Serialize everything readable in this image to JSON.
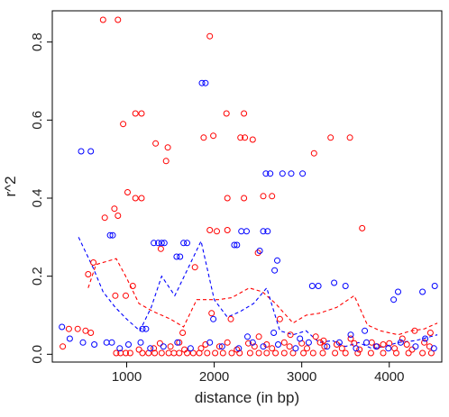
{
  "chart_data": {
    "type": "scatter",
    "title": "",
    "xlabel": "distance (in bp)",
    "ylabel": "r^2",
    "xlim": [
      150,
      4600
    ],
    "ylim": [
      -0.02,
      0.88
    ],
    "x_ticks": [
      1000,
      2000,
      3000,
      4000
    ],
    "x_tick_labels": [
      "1000",
      "2000",
      "3000",
      "4000"
    ],
    "y_ticks": [
      0.0,
      0.2,
      0.4,
      0.6,
      0.8
    ],
    "y_tick_labels": [
      "0.0",
      "0.2",
      "0.4",
      "0.6",
      "0.8"
    ],
    "grid": false,
    "legend": "none",
    "series": [
      {
        "color": "#ff0000",
        "marker": "open-circle",
        "points": [
          [
            730,
            0.857
          ],
          [
            900,
            0.857
          ],
          [
            960,
            0.59
          ],
          [
            1100,
            0.617
          ],
          [
            1170,
            0.617
          ],
          [
            1010,
            0.415
          ],
          [
            1100,
            0.4
          ],
          [
            1170,
            0.4
          ],
          [
            860,
            0.373
          ],
          [
            900,
            0.355
          ],
          [
            750,
            0.35
          ],
          [
            1330,
            0.54
          ],
          [
            1470,
            0.53
          ],
          [
            1450,
            0.495
          ],
          [
            1880,
            0.555
          ],
          [
            1950,
            0.815
          ],
          [
            1990,
            0.56
          ],
          [
            2140,
            0.617
          ],
          [
            2300,
            0.555
          ],
          [
            2340,
            0.617
          ],
          [
            2350,
            0.555
          ],
          [
            2440,
            0.55
          ],
          [
            2150,
            0.4
          ],
          [
            2340,
            0.4
          ],
          [
            2560,
            0.405
          ],
          [
            2660,
            0.405
          ],
          [
            3140,
            0.515
          ],
          [
            3330,
            0.555
          ],
          [
            3550,
            0.555
          ],
          [
            3690,
            0.323
          ],
          [
            1950,
            0.318
          ],
          [
            2030,
            0.315
          ],
          [
            2150,
            0.318
          ],
          [
            1390,
            0.27
          ],
          [
            1780,
            0.223
          ],
          [
            1970,
            0.105
          ],
          [
            2500,
            0.26
          ],
          [
            620,
            0.235
          ],
          [
            560,
            0.205
          ],
          [
            870,
            0.15
          ],
          [
            990,
            0.15
          ],
          [
            1070,
            0.175
          ],
          [
            1640,
            0.055
          ],
          [
            2190,
            0.09
          ],
          [
            2750,
            0.09
          ],
          [
            270,
            0.02
          ],
          [
            340,
            0.065
          ],
          [
            440,
            0.065
          ],
          [
            530,
            0.06
          ],
          [
            590,
            0.055
          ],
          [
            880,
            0.003
          ],
          [
            930,
            0.003
          ],
          [
            990,
            0.003
          ],
          [
            1040,
            0.003
          ],
          [
            1180,
            0.003
          ],
          [
            1250,
            0.003
          ],
          [
            1320,
            0.003
          ],
          [
            1400,
            0.003
          ],
          [
            1480,
            0.003
          ],
          [
            1540,
            0.003
          ],
          [
            1600,
            0.003
          ],
          [
            1690,
            0.003
          ],
          [
            1760,
            0.003
          ],
          [
            1830,
            0.003
          ],
          [
            1920,
            0.003
          ],
          [
            2010,
            0.003
          ],
          [
            2100,
            0.003
          ],
          [
            2200,
            0.003
          ],
          [
            2290,
            0.003
          ],
          [
            2410,
            0.003
          ],
          [
            2510,
            0.003
          ],
          [
            2600,
            0.003
          ],
          [
            2700,
            0.003
          ],
          [
            2800,
            0.003
          ],
          [
            2900,
            0.003
          ],
          [
            3020,
            0.003
          ],
          [
            3130,
            0.003
          ],
          [
            3240,
            0.003
          ],
          [
            3380,
            0.003
          ],
          [
            3500,
            0.003
          ],
          [
            3640,
            0.003
          ],
          [
            3790,
            0.003
          ],
          [
            3930,
            0.003
          ],
          [
            4080,
            0.003
          ],
          [
            4220,
            0.003
          ],
          [
            4380,
            0.003
          ],
          [
            4480,
            0.003
          ],
          [
            1140,
            0.012
          ],
          [
            1310,
            0.015
          ],
          [
            1500,
            0.02
          ],
          [
            1660,
            0.012
          ],
          [
            1850,
            0.015
          ],
          [
            2060,
            0.02
          ],
          [
            2260,
            0.012
          ],
          [
            2460,
            0.02
          ],
          [
            2660,
            0.015
          ],
          [
            2860,
            0.02
          ],
          [
            3060,
            0.015
          ],
          [
            3260,
            0.02
          ],
          [
            3460,
            0.015
          ],
          [
            3660,
            0.012
          ],
          [
            3860,
            0.02
          ],
          [
            4060,
            0.015
          ],
          [
            4260,
            0.012
          ],
          [
            4460,
            0.02
          ],
          [
            1380,
            0.028
          ],
          [
            1600,
            0.03
          ],
          [
            1900,
            0.025
          ],
          [
            2150,
            0.03
          ],
          [
            2390,
            0.028
          ],
          [
            2600,
            0.025
          ],
          [
            2800,
            0.03
          ],
          [
            3000,
            0.028
          ],
          [
            3210,
            0.03
          ],
          [
            3400,
            0.025
          ],
          [
            3600,
            0.028
          ],
          [
            3800,
            0.03
          ],
          [
            4000,
            0.028
          ],
          [
            4200,
            0.025
          ],
          [
            4400,
            0.03
          ],
          [
            2510,
            0.045
          ],
          [
            2870,
            0.05
          ],
          [
            3160,
            0.045
          ],
          [
            3560,
            0.04
          ],
          [
            4290,
            0.06
          ],
          [
            4470,
            0.055
          ],
          [
            3250,
            0.035
          ],
          [
            3930,
            0.025
          ],
          [
            4150,
            0.04
          ]
        ]
      },
      {
        "color": "#0000ff",
        "marker": "open-circle",
        "points": [
          [
            480,
            0.52
          ],
          [
            590,
            0.52
          ],
          [
            1860,
            0.695
          ],
          [
            1900,
            0.695
          ],
          [
            2590,
            0.463
          ],
          [
            2640,
            0.463
          ],
          [
            2780,
            0.463
          ],
          [
            2880,
            0.463
          ],
          [
            3010,
            0.463
          ],
          [
            810,
            0.305
          ],
          [
            840,
            0.305
          ],
          [
            1310,
            0.285
          ],
          [
            1360,
            0.285
          ],
          [
            1400,
            0.285
          ],
          [
            1430,
            0.285
          ],
          [
            1650,
            0.285
          ],
          [
            1690,
            0.285
          ],
          [
            1570,
            0.25
          ],
          [
            1610,
            0.25
          ],
          [
            2230,
            0.28
          ],
          [
            2260,
            0.28
          ],
          [
            2310,
            0.315
          ],
          [
            2370,
            0.315
          ],
          [
            2560,
            0.315
          ],
          [
            2610,
            0.315
          ],
          [
            2520,
            0.265
          ],
          [
            2720,
            0.24
          ],
          [
            2690,
            0.215
          ],
          [
            3120,
            0.175
          ],
          [
            3190,
            0.175
          ],
          [
            3370,
            0.183
          ],
          [
            3500,
            0.175
          ],
          [
            4050,
            0.14
          ],
          [
            4100,
            0.16
          ],
          [
            4380,
            0.16
          ],
          [
            4520,
            0.175
          ],
          [
            1180,
            0.065
          ],
          [
            1220,
            0.065
          ],
          [
            1990,
            0.09
          ],
          [
            2680,
            0.055
          ],
          [
            260,
            0.07
          ],
          [
            350,
            0.04
          ],
          [
            500,
            0.03
          ],
          [
            630,
            0.025
          ],
          [
            770,
            0.03
          ],
          [
            830,
            0.03
          ],
          [
            920,
            0.015
          ],
          [
            1020,
            0.025
          ],
          [
            1160,
            0.03
          ],
          [
            1270,
            0.015
          ],
          [
            1420,
            0.02
          ],
          [
            1580,
            0.03
          ],
          [
            1730,
            0.015
          ],
          [
            1950,
            0.03
          ],
          [
            2090,
            0.02
          ],
          [
            2280,
            0.015
          ],
          [
            2440,
            0.03
          ],
          [
            2560,
            0.02
          ],
          [
            2730,
            0.025
          ],
          [
            2930,
            0.015
          ],
          [
            3080,
            0.03
          ],
          [
            3290,
            0.02
          ],
          [
            3430,
            0.03
          ],
          [
            3620,
            0.015
          ],
          [
            3740,
            0.03
          ],
          [
            3850,
            0.02
          ],
          [
            3990,
            0.015
          ],
          [
            4130,
            0.03
          ],
          [
            4300,
            0.02
          ],
          [
            4510,
            0.015
          ],
          [
            4410,
            0.04
          ],
          [
            3560,
            0.05
          ],
          [
            2980,
            0.04
          ],
          [
            2380,
            0.045
          ],
          [
            3720,
            0.06
          ]
        ]
      }
    ],
    "lines": [
      {
        "color": "#ff0000",
        "style": "dashed",
        "points": [
          [
            560,
            0.17
          ],
          [
            650,
            0.23
          ],
          [
            880,
            0.245
          ],
          [
            1000,
            0.195
          ],
          [
            1140,
            0.13
          ],
          [
            1300,
            0.11
          ],
          [
            1500,
            0.09
          ],
          [
            1650,
            0.07
          ],
          [
            1800,
            0.14
          ],
          [
            2050,
            0.14
          ],
          [
            2200,
            0.145
          ],
          [
            2400,
            0.17
          ],
          [
            2550,
            0.16
          ],
          [
            2700,
            0.13
          ],
          [
            2900,
            0.08
          ],
          [
            3050,
            0.1
          ],
          [
            3200,
            0.105
          ],
          [
            3400,
            0.12
          ],
          [
            3600,
            0.15
          ],
          [
            3750,
            0.075
          ],
          [
            3900,
            0.06
          ],
          [
            4100,
            0.05
          ],
          [
            4250,
            0.06
          ],
          [
            4400,
            0.065
          ],
          [
            4550,
            0.08
          ]
        ]
      },
      {
        "color": "#0000ff",
        "style": "dashed",
        "points": [
          [
            450,
            0.3
          ],
          [
            620,
            0.22
          ],
          [
            730,
            0.16
          ],
          [
            870,
            0.12
          ],
          [
            1000,
            0.09
          ],
          [
            1150,
            0.06
          ],
          [
            1280,
            0.12
          ],
          [
            1400,
            0.2
          ],
          [
            1550,
            0.15
          ],
          [
            1700,
            0.22
          ],
          [
            1850,
            0.29
          ],
          [
            2000,
            0.14
          ],
          [
            2150,
            0.095
          ],
          [
            2300,
            0.11
          ],
          [
            2450,
            0.13
          ],
          [
            2600,
            0.17
          ],
          [
            2750,
            0.06
          ],
          [
            2900,
            0.05
          ],
          [
            3050,
            0.06
          ],
          [
            3200,
            0.03
          ],
          [
            3350,
            0.035
          ],
          [
            3500,
            0.02
          ],
          [
            3650,
            0.03
          ],
          [
            3800,
            0.015
          ],
          [
            3950,
            0.02
          ],
          [
            4100,
            0.03
          ],
          [
            4300,
            0.035
          ],
          [
            4550,
            0.05
          ]
        ]
      }
    ]
  }
}
